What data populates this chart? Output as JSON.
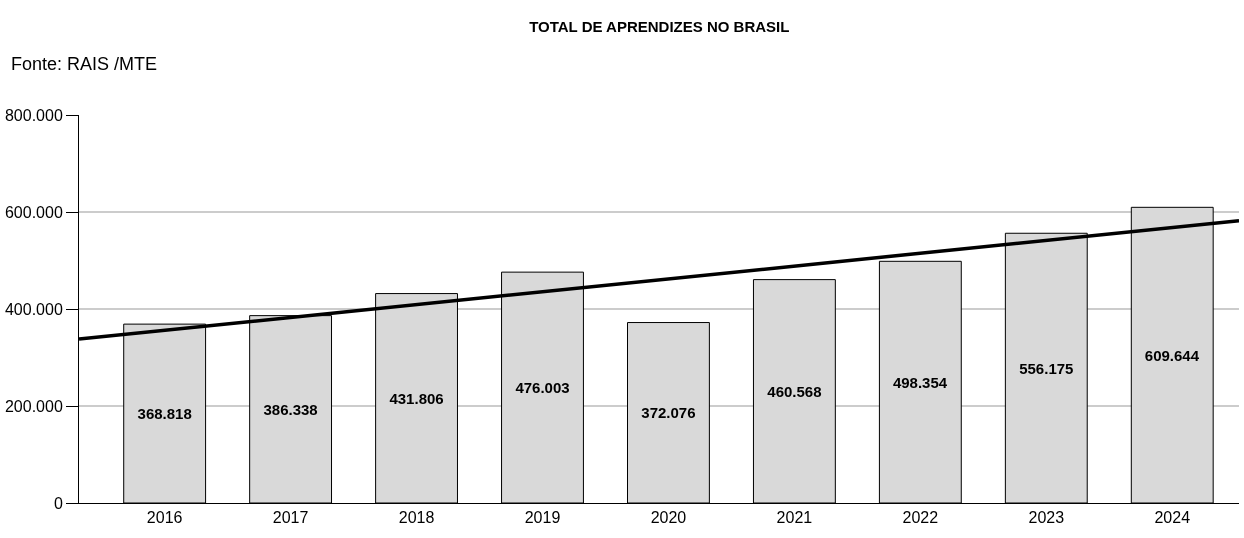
{
  "chart_data": {
    "type": "bar",
    "title": "TOTAL DE APRENDIZES NO BRASIL",
    "annotations": [
      "Fonte: RAIS /MTE"
    ],
    "x": [
      2016,
      2017,
      2018,
      2019,
      2020,
      2021,
      2022,
      2023,
      2024
    ],
    "xlim": [
      2015.32,
      2024.53
    ],
    "xticks": [
      2016,
      2017,
      2018,
      2019,
      2020,
      2021,
      2022,
      2023,
      2024
    ],
    "series": [
      {
        "color": "#d9d9d9",
        "values": [
          368818,
          386338,
          431806,
          476003,
          372076,
          460568,
          498354,
          556175,
          609644
        ],
        "value_labels": [
          "368.818",
          "386.338",
          "431.806",
          "476.003",
          "372.076",
          "460.568",
          "498.354",
          "556.175",
          "609.644"
        ]
      },
      {
        "type": "line",
        "color": "#000000",
        "x": [
          2015.32,
          2024.53
        ],
        "values": [
          338000,
          582000
        ]
      }
    ],
    "ylim": [
      0,
      800000
    ],
    "yticks": [
      {
        "value": 0,
        "label": "0"
      },
      {
        "value": 200000,
        "label": "200.000"
      },
      {
        "value": 400000,
        "label": "400.000"
      },
      {
        "value": 600000,
        "label": "600.000"
      },
      {
        "value": 800000,
        "label": "800.000"
      }
    ],
    "grid": "y"
  }
}
